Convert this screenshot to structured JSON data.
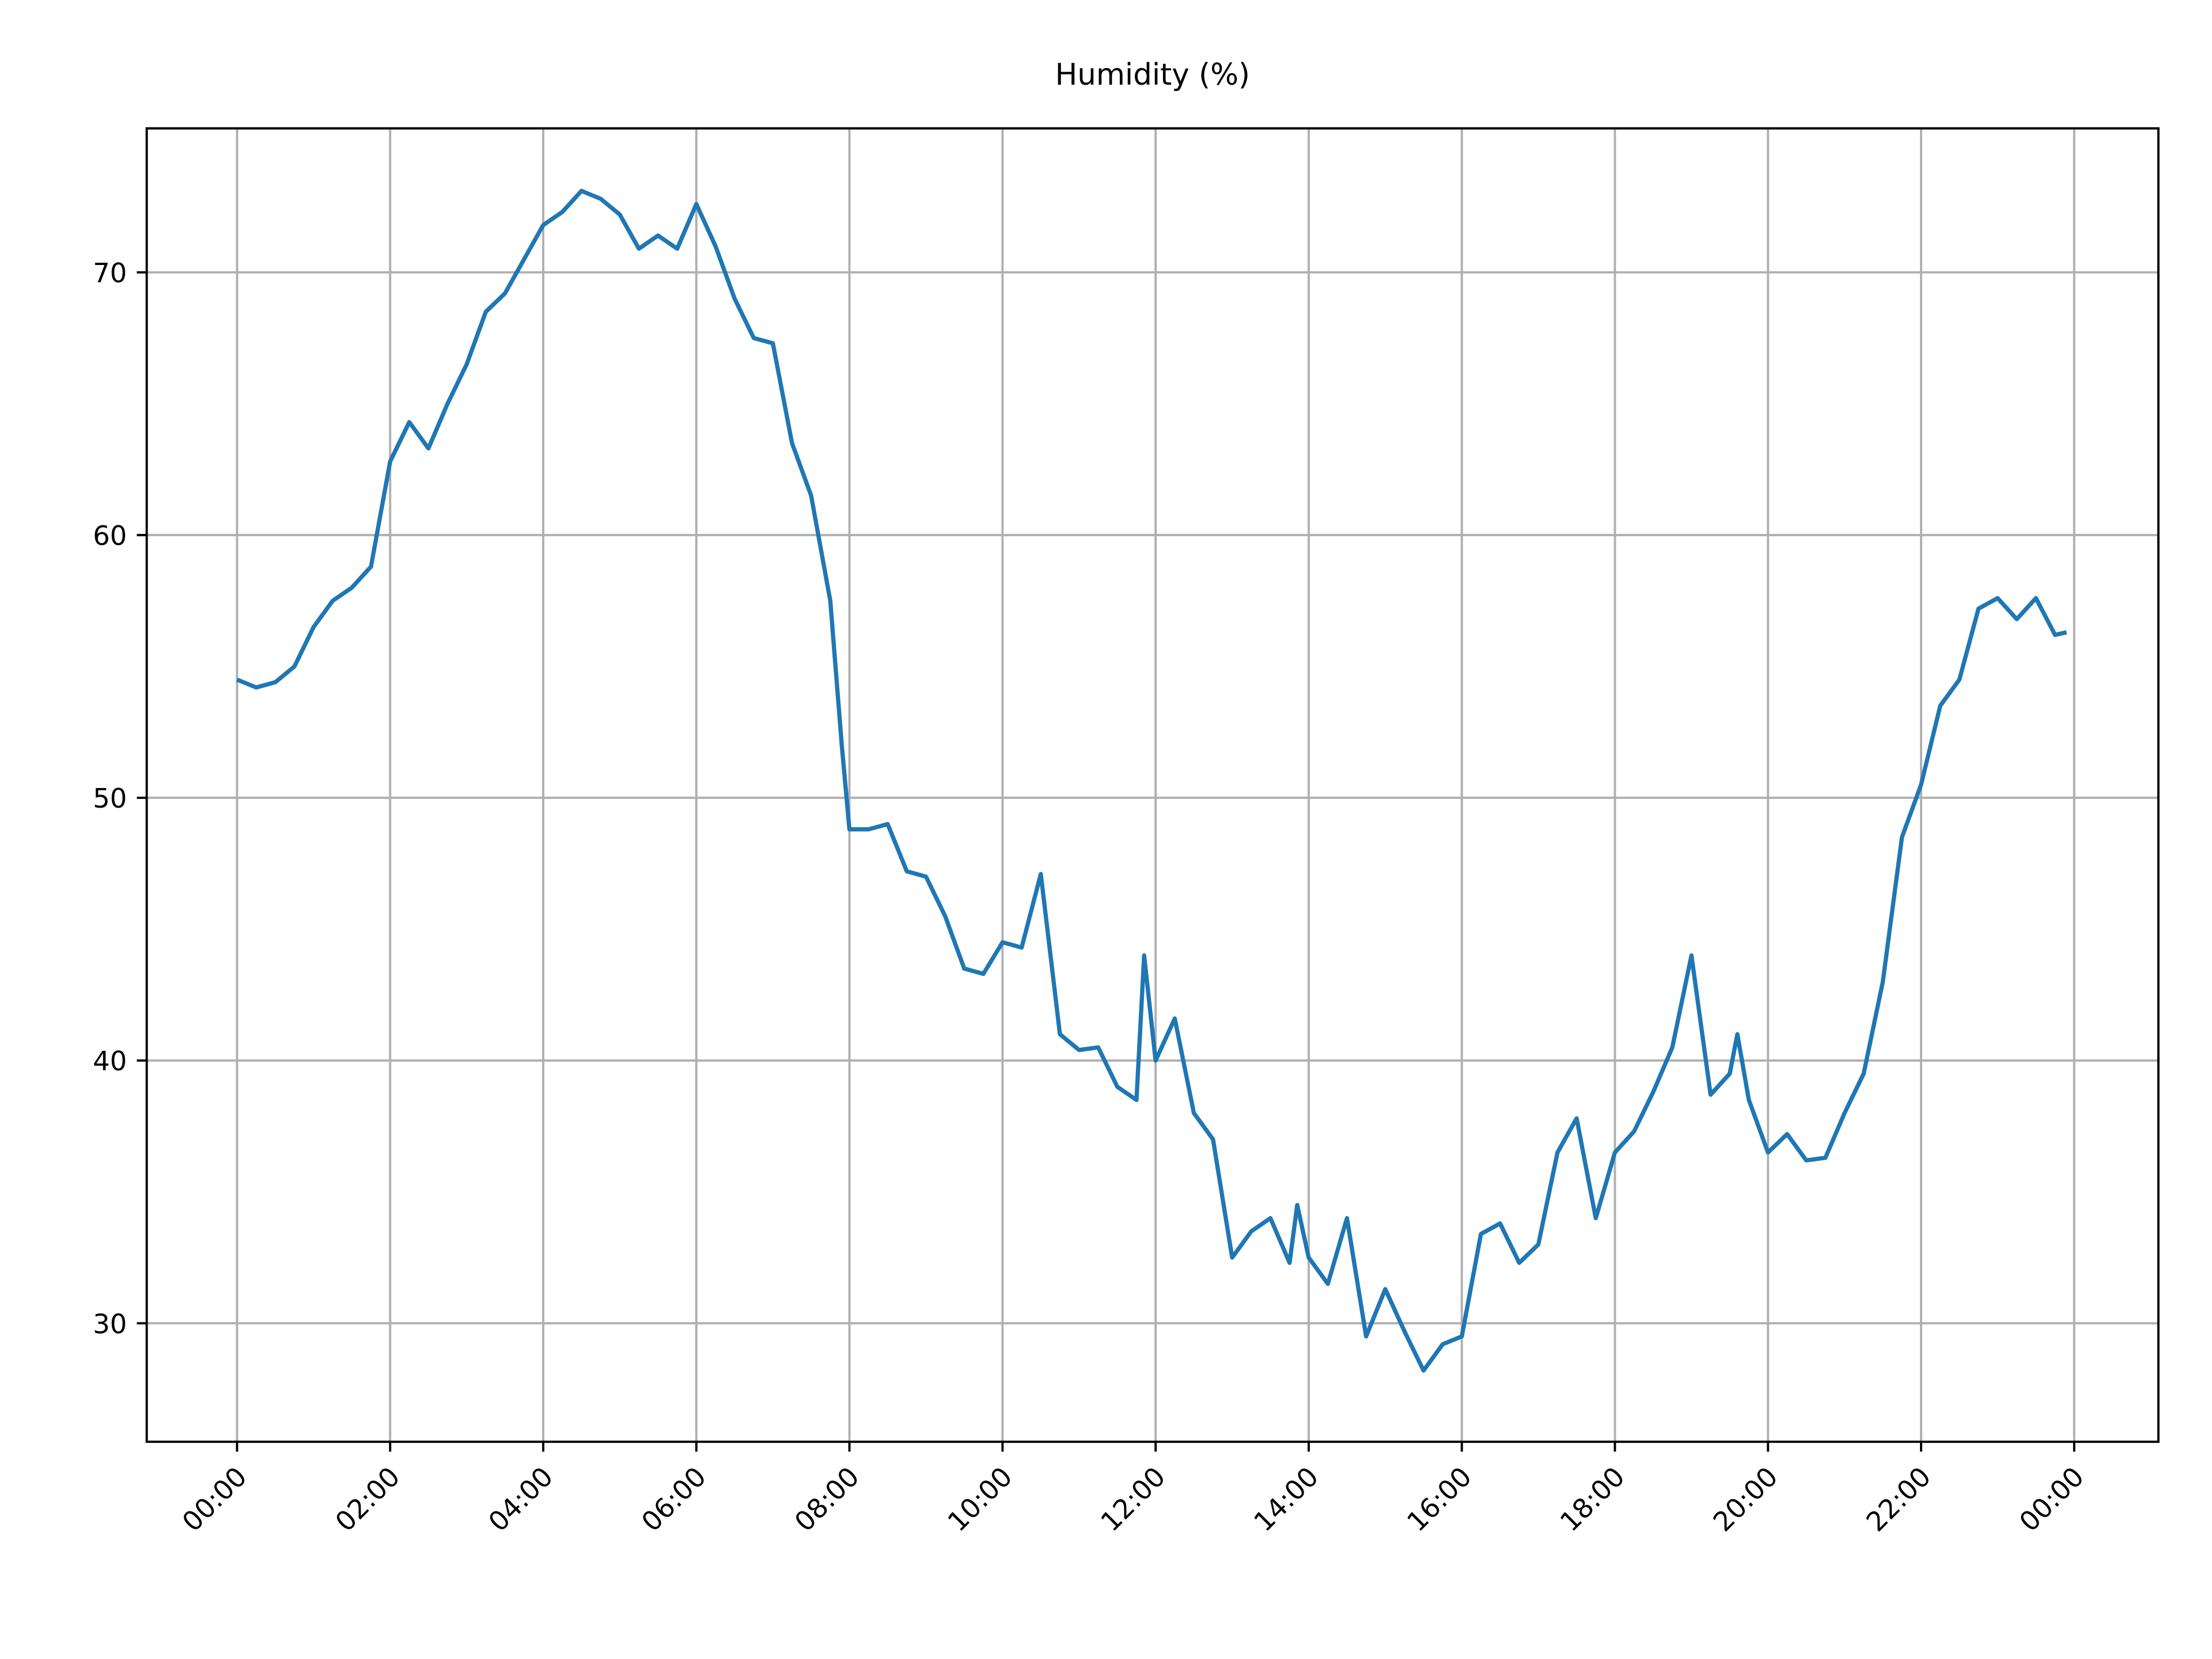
{
  "chart_data": {
    "type": "line",
    "title": "Humidity (%)",
    "color": "#1f77b4",
    "grid": true,
    "x": [
      0,
      0.25,
      0.5,
      0.75,
      1.0,
      1.25,
      1.5,
      1.75,
      2.0,
      2.25,
      2.5,
      2.75,
      3.0,
      3.25,
      3.5,
      3.75,
      4.0,
      4.25,
      4.5,
      4.75,
      5.0,
      5.25,
      5.5,
      5.75,
      6.0,
      6.25,
      6.5,
      6.75,
      7.0,
      7.25,
      7.5,
      7.75,
      7.9,
      8.0,
      8.25,
      8.5,
      8.75,
      9.0,
      9.25,
      9.5,
      9.75,
      10.0,
      10.25,
      10.5,
      10.75,
      11.0,
      11.25,
      11.5,
      11.75,
      11.85,
      12.0,
      12.25,
      12.5,
      12.75,
      13.0,
      13.25,
      13.5,
      13.75,
      13.85,
      14.0,
      14.25,
      14.5,
      14.75,
      15.0,
      15.25,
      15.5,
      15.75,
      16.0,
      16.25,
      16.5,
      16.75,
      17.0,
      17.25,
      17.5,
      17.75,
      18.0,
      18.25,
      18.5,
      18.75,
      19.0,
      19.25,
      19.5,
      19.6,
      19.75,
      20.0,
      20.25,
      20.5,
      20.75,
      21.0,
      21.25,
      21.5,
      21.75,
      22.0,
      22.25,
      22.5,
      22.75,
      23.0,
      23.25,
      23.5,
      23.75,
      23.9
    ],
    "values": [
      54.5,
      54.2,
      54.4,
      55.0,
      56.5,
      57.5,
      58.0,
      58.8,
      62.8,
      64.3,
      63.3,
      65.0,
      66.5,
      68.5,
      69.2,
      70.5,
      71.8,
      72.3,
      73.1,
      72.8,
      72.2,
      70.9,
      71.4,
      70.9,
      72.6,
      71.0,
      69.0,
      67.5,
      67.3,
      63.5,
      61.5,
      57.5,
      52.0,
      48.8,
      48.8,
      49.0,
      47.2,
      47.0,
      45.5,
      43.5,
      43.3,
      44.5,
      44.3,
      47.1,
      41.0,
      40.4,
      40.5,
      39.0,
      38.5,
      44.0,
      40.0,
      41.6,
      38.0,
      37.0,
      32.5,
      33.5,
      34.0,
      32.3,
      34.5,
      32.5,
      31.5,
      34.0,
      29.5,
      31.3,
      29.7,
      28.2,
      29.2,
      29.5,
      33.4,
      33.8,
      32.3,
      33.0,
      36.5,
      37.8,
      34.0,
      36.5,
      37.3,
      38.8,
      40.5,
      44.0,
      38.7,
      39.5,
      41.0,
      38.5,
      36.5,
      37.2,
      36.2,
      36.3,
      38.0,
      39.5,
      43.0,
      48.5,
      50.5,
      53.5,
      54.5,
      57.2,
      57.6,
      56.8,
      57.6,
      56.2,
      56.3
    ],
    "xlim": [
      -1.18,
      25.1
    ],
    "ylim": [
      25.49,
      75.48
    ],
    "xticks": [
      {
        "value": 0,
        "label": "00:00"
      },
      {
        "value": 2,
        "label": "02:00"
      },
      {
        "value": 4,
        "label": "04:00"
      },
      {
        "value": 6,
        "label": "06:00"
      },
      {
        "value": 8,
        "label": "08:00"
      },
      {
        "value": 10,
        "label": "10:00"
      },
      {
        "value": 12,
        "label": "12:00"
      },
      {
        "value": 14,
        "label": "14:00"
      },
      {
        "value": 16,
        "label": "16:00"
      },
      {
        "value": 18,
        "label": "18:00"
      },
      {
        "value": 20,
        "label": "20:00"
      },
      {
        "value": 22,
        "label": "22:00"
      },
      {
        "value": 24,
        "label": "00:00"
      }
    ],
    "yticks": [
      30,
      40,
      50,
      60,
      70
    ]
  }
}
